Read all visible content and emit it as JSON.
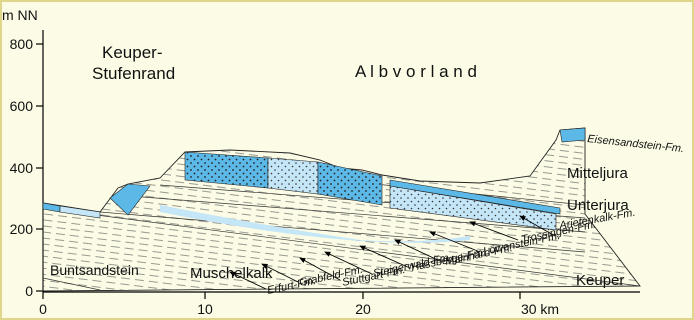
{
  "axes": {
    "y_label": "m NN",
    "y_ticks": [
      "0",
      "200",
      "400",
      "600",
      "800"
    ],
    "x_ticks": [
      "0",
      "10",
      "20",
      "30 km"
    ]
  },
  "regions": [
    "Keuper-",
    "Stufenrand",
    "A l b v o r l a n d"
  ],
  "units": [
    "Mitteljura",
    "Unterjura",
    "Buntsandstein",
    "Muschelkalk",
    "Keuper"
  ],
  "formations": [
    "Eisensandstein-Fm.",
    "Arietenkalk-Fm.",
    "Trossingen-Fm.",
    "Löwenstein-Fm.",
    "Mainhard-Fm.",
    "Hassberge-Fm.",
    "Steigerwald-Fm.",
    "Grabfeld-Fm.",
    "Stuttgart-Fm.",
    "Erfurt-Fm."
  ]
}
